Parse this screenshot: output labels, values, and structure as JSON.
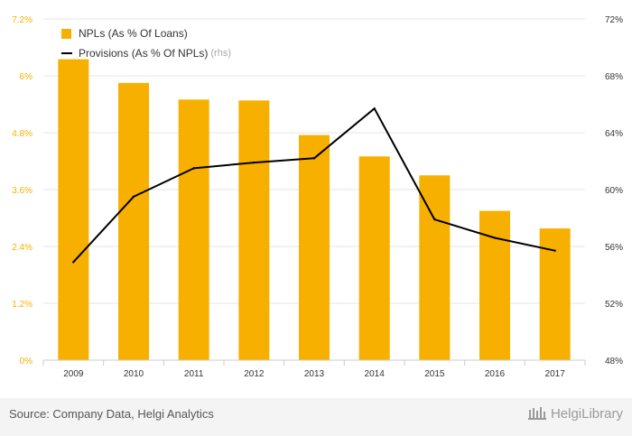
{
  "chart_data": {
    "type": "bar",
    "categories": [
      "2009",
      "2010",
      "2011",
      "2012",
      "2013",
      "2014",
      "2015",
      "2016",
      "2017"
    ],
    "series": [
      {
        "name": "NPLs (As % Of Loans)",
        "type": "bar",
        "axis": "left",
        "color": "#f8b000",
        "values": [
          6.35,
          5.85,
          5.5,
          5.48,
          4.75,
          4.3,
          3.9,
          3.15,
          2.78
        ]
      },
      {
        "name": "Provisions (As % Of NPLs)",
        "type": "line",
        "axis": "right",
        "color": "#000000",
        "values": [
          54.9,
          59.5,
          61.5,
          61.9,
          62.2,
          65.7,
          57.9,
          56.6,
          55.7
        ]
      }
    ],
    "legend_suffix": "(rhs)",
    "y_left": {
      "lim": [
        0,
        7.2
      ],
      "ticks": [
        "0%",
        "1.2%",
        "2.4%",
        "3.6%",
        "4.8%",
        "6%",
        "7.2%"
      ],
      "tick_color": "#f8b000"
    },
    "y_right": {
      "lim": [
        48,
        72
      ],
      "ticks": [
        "48%",
        "52%",
        "56%",
        "60%",
        "64%",
        "68%",
        "72%"
      ]
    },
    "grid": true,
    "legend_position": "top-left"
  },
  "footer": {
    "source": "Source: Company Data, Helgi Analytics",
    "brand": "HelgiLibrary"
  }
}
